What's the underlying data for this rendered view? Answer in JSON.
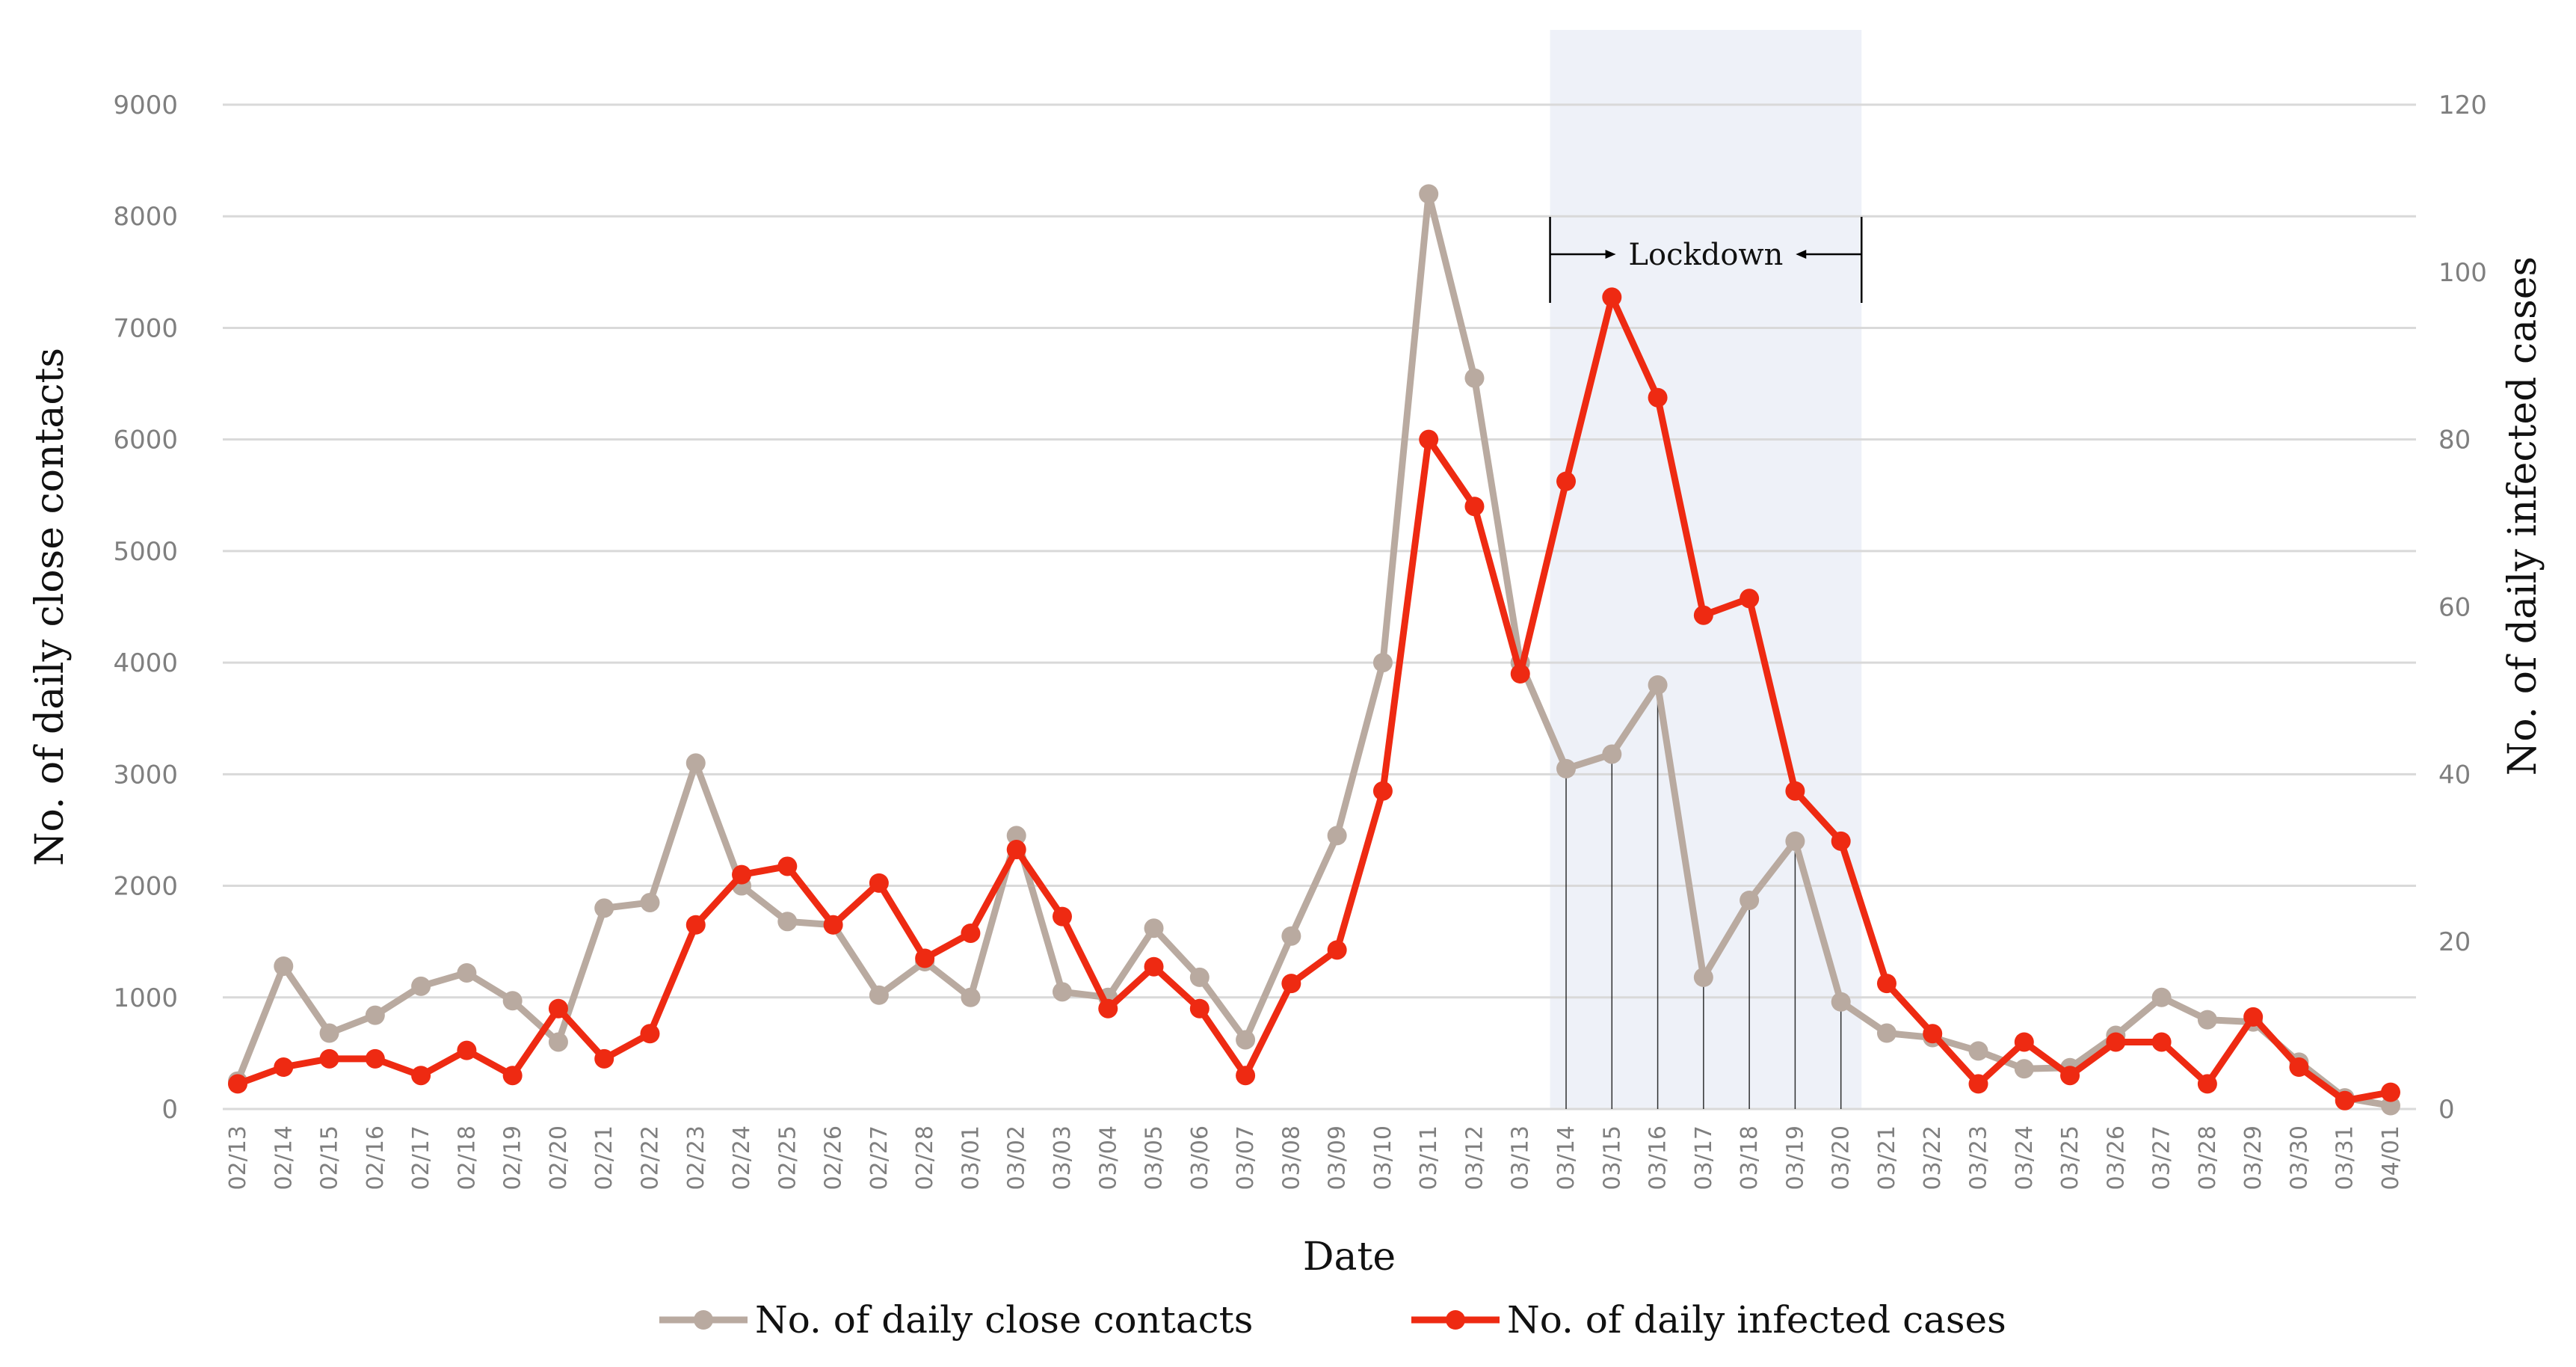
{
  "colors": {
    "contacts": "#b9aaa0",
    "infected": "#ee2a12",
    "lockdown_band": "#eef1f8",
    "grid": "#d9d9d9",
    "ticks": "#7f7f7f"
  },
  "chart_data": {
    "type": "line",
    "xlabel": "Date",
    "ylabel_left": "No. of daily close contacts",
    "ylabel_right": "No. of daily infected cases",
    "ylim_left": [
      0,
      9000
    ],
    "ylim_right": [
      0,
      120
    ],
    "yticks_left": [
      "0",
      "1000",
      "2000",
      "3000",
      "4000",
      "5000",
      "6000",
      "7000",
      "8000",
      "9000"
    ],
    "yticks_right": [
      "0",
      "20",
      "40",
      "60",
      "80",
      "100",
      "120"
    ],
    "grid": true,
    "legend_position": "bottom",
    "categories": [
      "02/13",
      "02/14",
      "02/15",
      "02/16",
      "02/17",
      "02/18",
      "02/19",
      "02/20",
      "02/21",
      "02/22",
      "02/23",
      "02/24",
      "02/25",
      "02/26",
      "02/27",
      "02/28",
      "03/01",
      "03/02",
      "03/03",
      "03/04",
      "03/05",
      "03/06",
      "03/07",
      "03/08",
      "03/09",
      "03/10",
      "03/11",
      "03/12",
      "03/13",
      "03/14",
      "03/15",
      "03/16",
      "03/17",
      "03/18",
      "03/19",
      "03/20",
      "03/21",
      "03/22",
      "03/23",
      "03/24",
      "03/25",
      "03/26",
      "03/27",
      "03/28",
      "03/29",
      "03/30",
      "03/31",
      "04/01"
    ],
    "series": [
      {
        "name": "No. of daily close contacts",
        "axis": "left",
        "values": [
          250,
          1280,
          680,
          840,
          1100,
          1220,
          970,
          600,
          1800,
          1850,
          3100,
          2000,
          1680,
          1650,
          1020,
          1320,
          1000,
          2450,
          1050,
          1000,
          1620,
          1180,
          620,
          1550,
          2450,
          4000,
          8200,
          6550,
          4000,
          3050,
          3180,
          3800,
          1180,
          1870,
          2400,
          960,
          680,
          640,
          520,
          360,
          370,
          660,
          1000,
          800,
          780,
          420,
          100,
          30
        ],
        "marker": "circle"
      },
      {
        "name": "No. of daily infected cases",
        "axis": "right",
        "values": [
          3,
          5,
          6,
          6,
          4,
          7,
          4,
          12,
          6,
          9,
          22,
          28,
          29,
          22,
          27,
          18,
          21,
          31,
          23,
          12,
          17,
          12,
          4,
          15,
          19,
          38,
          80,
          72,
          52,
          75,
          97,
          85,
          59,
          61,
          38,
          32,
          15,
          9,
          3,
          8,
          4,
          8,
          8,
          3,
          11,
          5,
          1,
          2
        ],
        "marker": "circle"
      }
    ],
    "annotations": [
      {
        "text": "Lockdown",
        "start": "03/14",
        "end": "03/20"
      }
    ]
  }
}
